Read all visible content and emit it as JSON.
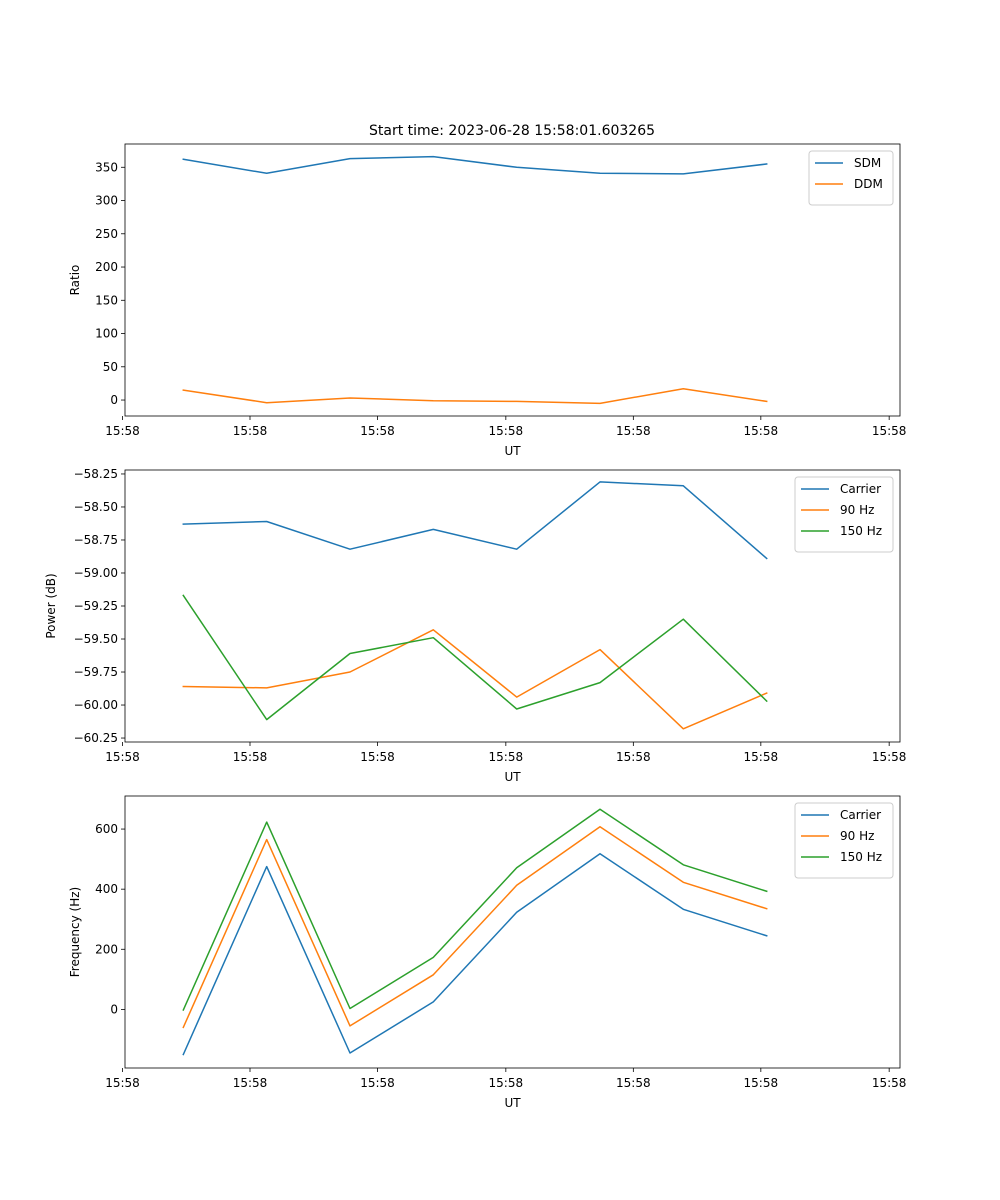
{
  "figure_title": "Start time: 2023-06-28 15:58:01.603265",
  "colors": {
    "blue": "#1f77b4",
    "orange": "#ff7f0e",
    "green": "#2ca02c"
  },
  "chart_data": [
    {
      "type": "line",
      "xlabel": "UT",
      "ylabel": "Ratio",
      "x_tick_labels": [
        "15:58",
        "15:58",
        "15:58",
        "15:58",
        "15:58",
        "15:58",
        "15:58"
      ],
      "y_ticks": [
        0,
        50,
        100,
        150,
        200,
        250,
        300,
        350
      ],
      "ylim": [
        -24,
        385
      ],
      "xlim": [
        -0.7,
        8.6
      ],
      "legend_position": "upper right",
      "x": [
        0,
        1,
        2,
        3,
        4,
        5,
        6,
        7
      ],
      "series": [
        {
          "name": "SDM",
          "color": "#1f77b4",
          "values": [
            362,
            341,
            363,
            366,
            350,
            341,
            340,
            355
          ]
        },
        {
          "name": "DDM",
          "color": "#ff7f0e",
          "values": [
            15,
            -4,
            3,
            -1,
            -2,
            -5,
            17,
            -2
          ]
        }
      ]
    },
    {
      "type": "line",
      "xlabel": "UT",
      "ylabel": "Power (dB)",
      "x_tick_labels": [
        "15:58",
        "15:58",
        "15:58",
        "15:58",
        "15:58",
        "15:58",
        "15:58"
      ],
      "y_ticks": [
        -60.25,
        -60.0,
        -59.75,
        -59.5,
        -59.25,
        -59.0,
        -58.75,
        -58.5,
        -58.25
      ],
      "y_tick_labels": [
        "−60.25",
        "−60.00",
        "−59.75",
        "−59.50",
        "−59.25",
        "−59.00",
        "−58.75",
        "−58.50",
        "−58.25"
      ],
      "ylim": [
        -60.28,
        -58.22
      ],
      "xlim": [
        -0.7,
        8.6
      ],
      "legend_position": "upper right",
      "x": [
        0,
        1,
        2,
        3,
        4,
        5,
        6,
        7
      ],
      "series": [
        {
          "name": "Carrier",
          "color": "#1f77b4",
          "values": [
            -58.63,
            -58.61,
            -58.82,
            -58.67,
            -58.82,
            -58.31,
            -58.34,
            -58.89
          ]
        },
        {
          "name": "90 Hz",
          "color": "#ff7f0e",
          "values": [
            -59.86,
            -59.87,
            -59.75,
            -59.43,
            -59.94,
            -59.58,
            -60.18,
            -59.91
          ]
        },
        {
          "name": "150 Hz",
          "color": "#2ca02c",
          "values": [
            -59.17,
            -60.11,
            -59.61,
            -59.49,
            -60.03,
            -59.83,
            -59.35,
            -59.97
          ]
        }
      ]
    },
    {
      "type": "line",
      "xlabel": "UT",
      "ylabel": "Frequency (Hz)",
      "x_tick_labels": [
        "15:58",
        "15:58",
        "15:58",
        "15:58",
        "15:58",
        "15:58",
        "15:58"
      ],
      "y_ticks": [
        0,
        200,
        400,
        600
      ],
      "ylim": [
        -195,
        710
      ],
      "xlim": [
        -0.7,
        8.6
      ],
      "legend_position": "upper right",
      "x": [
        0,
        1,
        2,
        3,
        4,
        5,
        6,
        7
      ],
      "series": [
        {
          "name": "Carrier",
          "color": "#1f77b4",
          "values": [
            -150,
            475,
            -145,
            25,
            323,
            518,
            333,
            245
          ]
        },
        {
          "name": "90 Hz",
          "color": "#ff7f0e",
          "values": [
            -60,
            565,
            -55,
            115,
            413,
            608,
            423,
            335
          ]
        },
        {
          "name": "150 Hz",
          "color": "#2ca02c",
          "values": [
            -2,
            623,
            3,
            173,
            471,
            666,
            481,
            393
          ]
        }
      ]
    }
  ]
}
